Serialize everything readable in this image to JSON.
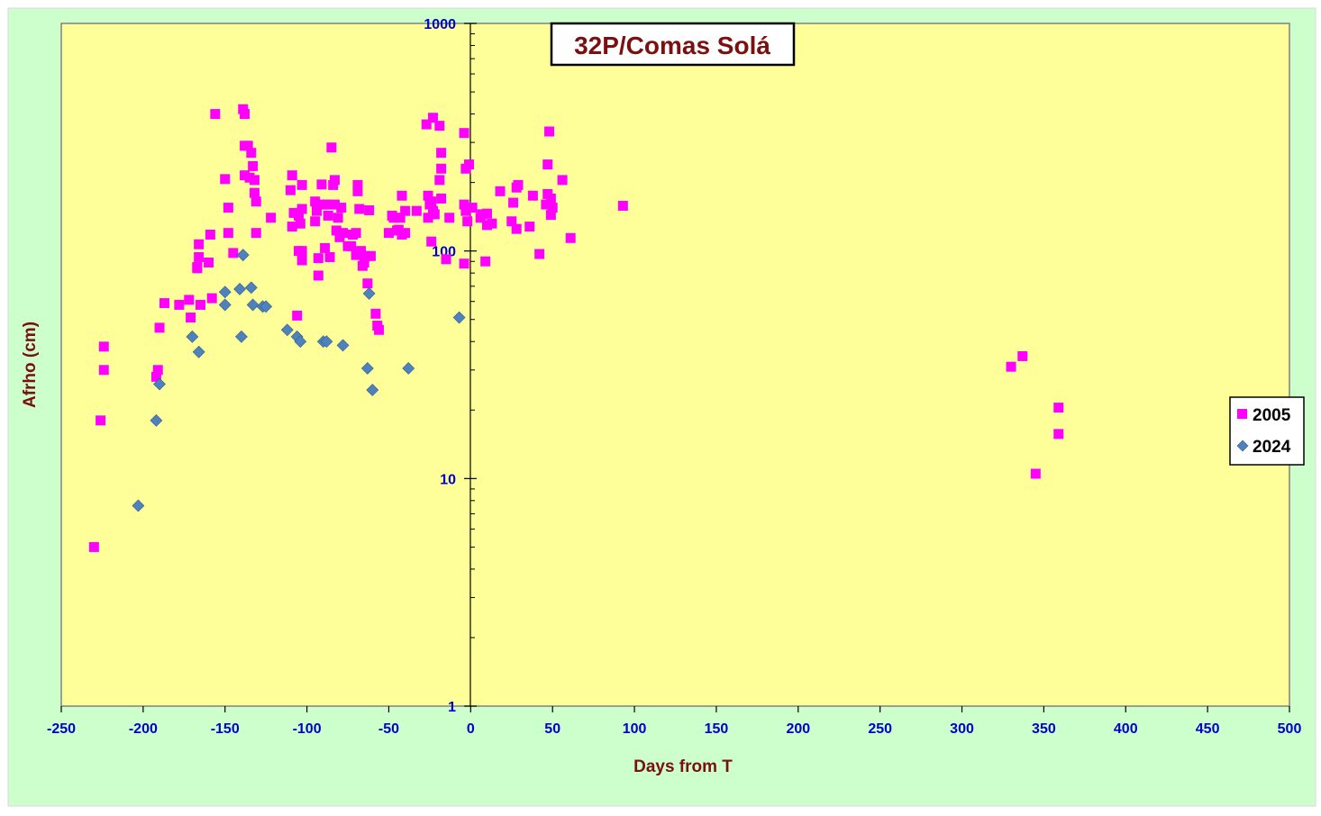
{
  "colors": {
    "outer_bg": "#ccffcc",
    "plot_bg": "#ffff99",
    "series_2005": "#ff00ff",
    "series_2024": "#4f81bd",
    "tick_text": "#0000cc",
    "axis_title_text": "#7a1010"
  },
  "chart_data": {
    "type": "scatter",
    "title": "32P/Comas Solá",
    "xlabel": "Days from  T",
    "ylabel": "Afrho (cm)",
    "xlim": [
      -250,
      500
    ],
    "ylim": [
      1,
      1000
    ],
    "yscale": "log",
    "grid": false,
    "legend_position": "right",
    "x_ticks": [
      "-250",
      "-200",
      "-150",
      "-100",
      "-50",
      "0",
      "50",
      "100",
      "150",
      "200",
      "250",
      "300",
      "350",
      "400",
      "450",
      "500"
    ],
    "y_ticks": [
      "1",
      "10",
      "100",
      "1000"
    ],
    "series": [
      {
        "name": "2005",
        "marker": "square",
        "points": [
          [
            -230,
            5
          ],
          [
            -226,
            18
          ],
          [
            -224,
            30
          ],
          [
            -224,
            38
          ],
          [
            -192,
            28
          ],
          [
            -191,
            30
          ],
          [
            -190,
            46
          ],
          [
            -187,
            59
          ],
          [
            -178,
            58
          ],
          [
            -172,
            61
          ],
          [
            -171,
            51
          ],
          [
            -167,
            85
          ],
          [
            -167,
            84
          ],
          [
            -166,
            94
          ],
          [
            -166,
            107
          ],
          [
            -165,
            58
          ],
          [
            -160,
            89
          ],
          [
            -159,
            118
          ],
          [
            -158,
            62
          ],
          [
            -156,
            400
          ],
          [
            -150,
            207
          ],
          [
            -148,
            155
          ],
          [
            -148,
            120
          ],
          [
            -145,
            98
          ],
          [
            -139,
            420
          ],
          [
            -138,
            400
          ],
          [
            -138,
            290
          ],
          [
            -138,
            215
          ],
          [
            -136,
            290
          ],
          [
            -135,
            210
          ],
          [
            -134,
            270
          ],
          [
            -133,
            236
          ],
          [
            -132,
            205
          ],
          [
            -132,
            180
          ],
          [
            -131,
            165
          ],
          [
            -131,
            120
          ],
          [
            -122,
            140
          ],
          [
            -110,
            185
          ],
          [
            -109,
            215
          ],
          [
            -109,
            128
          ],
          [
            -108,
            147
          ],
          [
            -105,
            143
          ],
          [
            -105,
            100
          ],
          [
            -104,
            132
          ],
          [
            -103,
            195
          ],
          [
            -103,
            153
          ],
          [
            -103,
            91
          ],
          [
            -103,
            100
          ],
          [
            -106,
            52
          ],
          [
            -95,
            165
          ],
          [
            -95,
            135
          ],
          [
            -94,
            150
          ],
          [
            -93,
            93
          ],
          [
            -93,
            78
          ],
          [
            -91,
            196
          ],
          [
            -90,
            160
          ],
          [
            -89,
            103
          ],
          [
            -88,
            160
          ],
          [
            -87,
            143
          ],
          [
            -86,
            94
          ],
          [
            -85,
            285
          ],
          [
            -84,
            195
          ],
          [
            -83,
            205
          ],
          [
            -83,
            160
          ],
          [
            -82,
            123
          ],
          [
            -81,
            140
          ],
          [
            -80,
            115
          ],
          [
            -79,
            155
          ],
          [
            -78,
            120
          ],
          [
            -75,
            105
          ],
          [
            -73,
            105
          ],
          [
            -72,
            118
          ],
          [
            -70,
            120
          ],
          [
            -70,
            96
          ],
          [
            -69,
            195
          ],
          [
            -69,
            183
          ],
          [
            -68,
            153
          ],
          [
            -67,
            100
          ],
          [
            -66,
            86
          ],
          [
            -65,
            89
          ],
          [
            -64,
            95
          ],
          [
            -63,
            72
          ],
          [
            -62,
            151
          ],
          [
            -61,
            95
          ],
          [
            -58,
            53
          ],
          [
            -57,
            47
          ],
          [
            -56,
            45
          ],
          [
            -50,
            120
          ],
          [
            -48,
            143
          ],
          [
            -47,
            140
          ],
          [
            -45,
            123
          ],
          [
            -44,
            124
          ],
          [
            -43,
            140
          ],
          [
            -42,
            175
          ],
          [
            -42,
            118
          ],
          [
            -40,
            120
          ],
          [
            -40,
            150
          ],
          [
            -33,
            150
          ],
          [
            -27,
            360
          ],
          [
            -26,
            140
          ],
          [
            -26,
            175
          ],
          [
            -25,
            160
          ],
          [
            -24,
            110
          ],
          [
            -24,
            165
          ],
          [
            -23,
            385
          ],
          [
            -23,
            150
          ],
          [
            -22,
            145
          ],
          [
            -19,
            205
          ],
          [
            -19,
            355
          ],
          [
            -18,
            270
          ],
          [
            -18,
            230
          ],
          [
            -18,
            170
          ],
          [
            -15,
            92
          ],
          [
            -13,
            140
          ],
          [
            -4,
            330
          ],
          [
            -4,
            160
          ],
          [
            -4,
            88
          ],
          [
            -3,
            230
          ],
          [
            -3,
            150
          ],
          [
            -2,
            135
          ],
          [
            -1,
            240
          ],
          [
            1,
            155
          ],
          [
            6,
            140
          ],
          [
            7,
            145
          ],
          [
            9,
            90
          ],
          [
            10,
            146
          ],
          [
            10,
            130
          ],
          [
            13,
            132
          ],
          [
            18,
            183
          ],
          [
            25,
            135
          ],
          [
            26,
            163
          ],
          [
            28,
            190
          ],
          [
            28,
            125
          ],
          [
            29,
            195
          ],
          [
            36,
            128
          ],
          [
            38,
            175
          ],
          [
            42,
            97
          ],
          [
            46,
            160
          ],
          [
            47,
            178
          ],
          [
            47,
            240
          ],
          [
            48,
            335
          ],
          [
            49,
            144
          ],
          [
            49,
            170
          ],
          [
            50,
            155
          ],
          [
            56,
            205
          ],
          [
            61,
            114
          ],
          [
            93,
            158
          ],
          [
            330,
            31
          ],
          [
            337,
            34.5
          ],
          [
            345,
            10.5
          ],
          [
            359,
            20.5
          ],
          [
            359,
            15.7
          ]
        ]
      },
      {
        "name": "2024",
        "marker": "diamond",
        "points": [
          [
            -203,
            7.6
          ],
          [
            -192,
            18
          ],
          [
            -190,
            26
          ],
          [
            -170,
            42
          ],
          [
            -166,
            36
          ],
          [
            -150,
            66
          ],
          [
            -150,
            58
          ],
          [
            -141,
            68
          ],
          [
            -139,
            96
          ],
          [
            -140,
            42
          ],
          [
            -134,
            69
          ],
          [
            -133,
            58
          ],
          [
            -127,
            57
          ],
          [
            -125,
            57
          ],
          [
            -112,
            45
          ],
          [
            -106,
            42
          ],
          [
            -104,
            40
          ],
          [
            -90,
            40
          ],
          [
            -88,
            40
          ],
          [
            -78,
            38.5
          ],
          [
            -63,
            30.5
          ],
          [
            -62,
            65
          ],
          [
            -60,
            24.5
          ],
          [
            -38,
            30.5
          ],
          [
            -7,
            51
          ]
        ]
      }
    ]
  }
}
